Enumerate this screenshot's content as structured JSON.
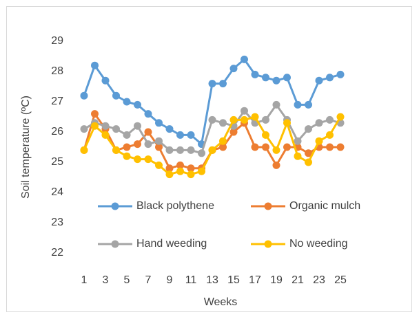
{
  "chart_data": {
    "type": "line",
    "x_label": "Weeks",
    "y_label": "Soil temperature (ºC)",
    "categories": [
      1,
      null,
      3,
      null,
      5,
      null,
      7,
      null,
      9,
      null,
      11,
      null,
      13,
      null,
      15,
      null,
      17,
      null,
      19,
      null,
      21,
      null,
      23,
      null,
      25
    ],
    "series": [
      {
        "name": "Black polythene",
        "color": "#5b9bd5",
        "values": [
          27.2,
          28.2,
          27.7,
          27.2,
          27.0,
          26.9,
          26.6,
          26.3,
          26.1,
          25.9,
          25.9,
          25.6,
          27.6,
          27.6,
          28.1,
          28.4,
          27.9,
          27.8,
          27.7,
          27.8,
          26.9,
          26.9,
          27.7,
          27.8,
          27.9
        ]
      },
      {
        "name": "Organic mulch",
        "color": "#ed7d31",
        "values": [
          25.4,
          26.6,
          26.1,
          25.4,
          25.5,
          25.6,
          26.0,
          25.5,
          24.8,
          24.9,
          24.8,
          24.8,
          25.4,
          25.5,
          26.0,
          26.3,
          25.5,
          25.5,
          24.9,
          25.5,
          25.5,
          25.3,
          25.5,
          25.5,
          25.5
        ]
      },
      {
        "name": "Hand weeding",
        "color": "#a5a5a5",
        "values": [
          26.1,
          26.3,
          26.2,
          26.1,
          25.9,
          26.2,
          25.6,
          25.7,
          25.4,
          25.4,
          25.4,
          25.3,
          26.4,
          26.3,
          26.2,
          26.7,
          26.3,
          26.4,
          26.9,
          26.4,
          25.7,
          26.1,
          26.3,
          26.4,
          26.3
        ]
      },
      {
        "name": "No weeding",
        "color": "#ffc000",
        "values": [
          25.4,
          26.2,
          25.9,
          25.4,
          25.2,
          25.1,
          25.1,
          24.9,
          24.6,
          24.7,
          24.6,
          24.7,
          25.4,
          25.7,
          26.4,
          26.4,
          26.5,
          25.9,
          25.4,
          26.3,
          25.2,
          25.0,
          25.7,
          25.9,
          26.5
        ]
      }
    ],
    "ylim": [
      22,
      29
    ],
    "yticks": [
      22,
      23,
      24,
      25,
      26,
      27,
      28,
      29
    ]
  }
}
